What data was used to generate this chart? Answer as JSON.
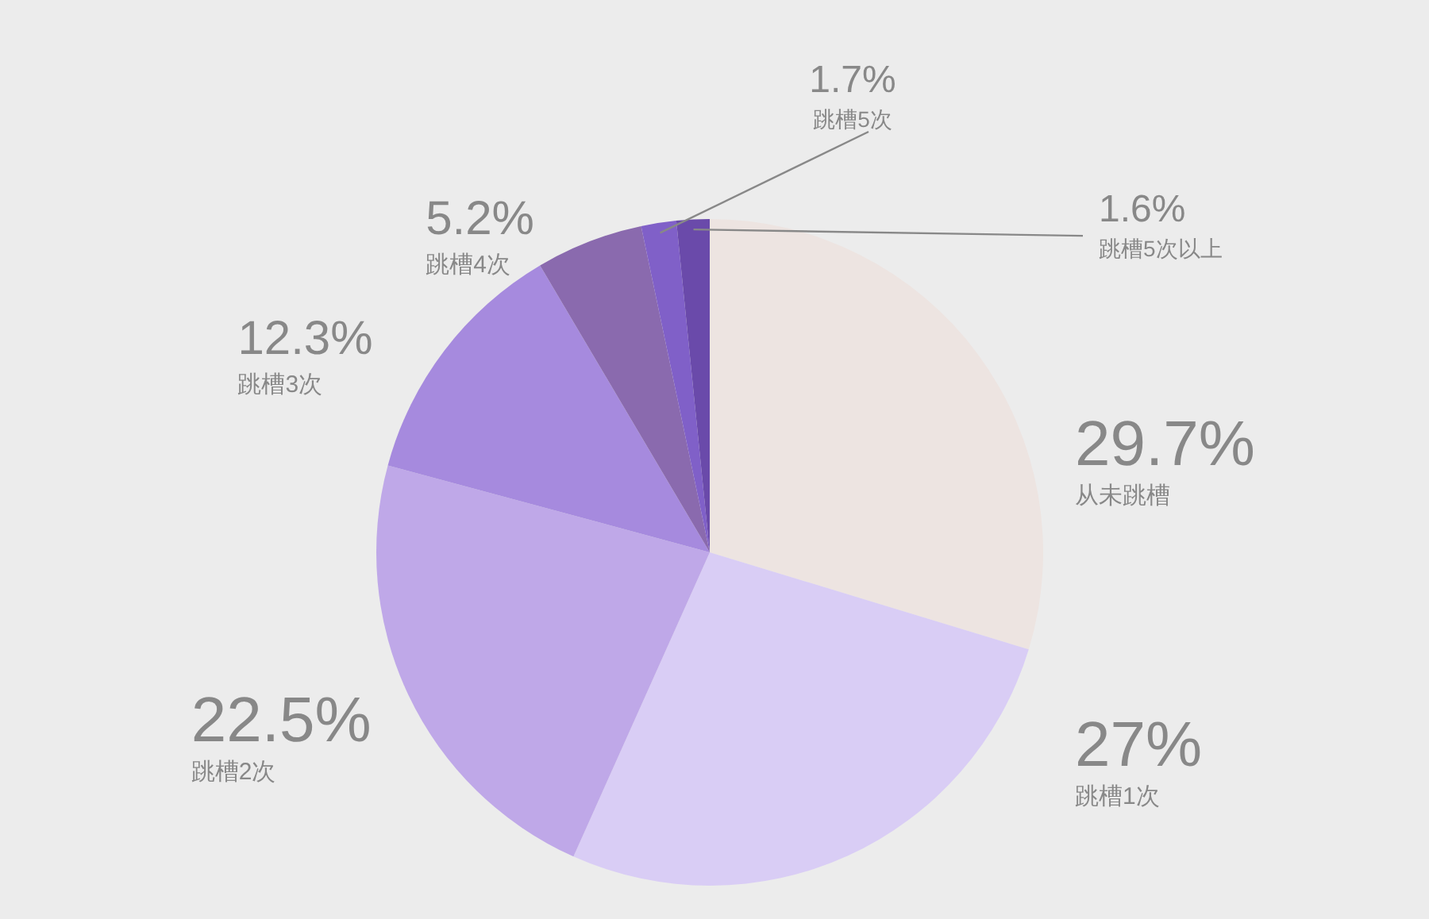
{
  "chart_data": {
    "type": "pie",
    "categories": [
      "从未跳槽",
      "跳槽1次",
      "跳槽2次",
      "跳槽3次",
      "跳槽4次",
      "跳槽5次",
      "跳槽5次以上"
    ],
    "values": [
      29.7,
      27,
      22.5,
      12.3,
      5.2,
      1.7,
      1.6
    ],
    "value_labels": [
      "29.7%",
      "27%",
      "22.5%",
      "12.3%",
      "5.2%",
      "1.7%",
      "1.6%"
    ],
    "colors": [
      "#ede4e1",
      "#d9cdf5",
      "#bfa8e8",
      "#a68ade",
      "#8a6aae",
      "#8060c8",
      "#6a4aaa"
    ]
  }
}
